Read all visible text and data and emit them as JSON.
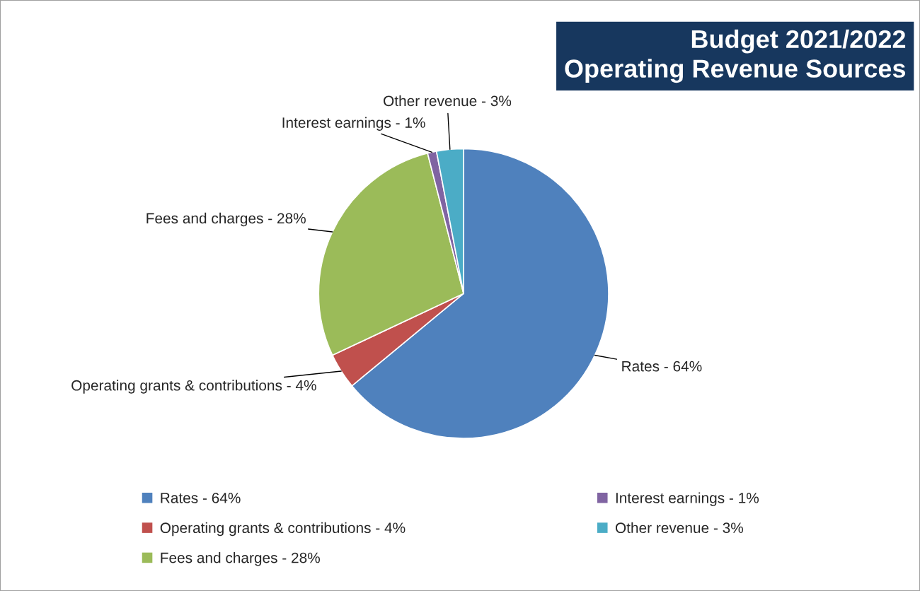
{
  "chart_data": {
    "type": "pie",
    "title": "Budget 2021/2022\nOperating Revenue Sources",
    "categories": [
      "Rates - 64%",
      "Operating grants & contributions - 4%",
      "Fees and charges - 28%",
      "Interest earnings - 1%",
      "Other revenue - 3%"
    ],
    "values": [
      64,
      4,
      28,
      1,
      3
    ],
    "colors": [
      "#4f81bd",
      "#c0504d",
      "#9bbb59",
      "#8064a2",
      "#4bacc6"
    ],
    "legend": "bottom"
  }
}
